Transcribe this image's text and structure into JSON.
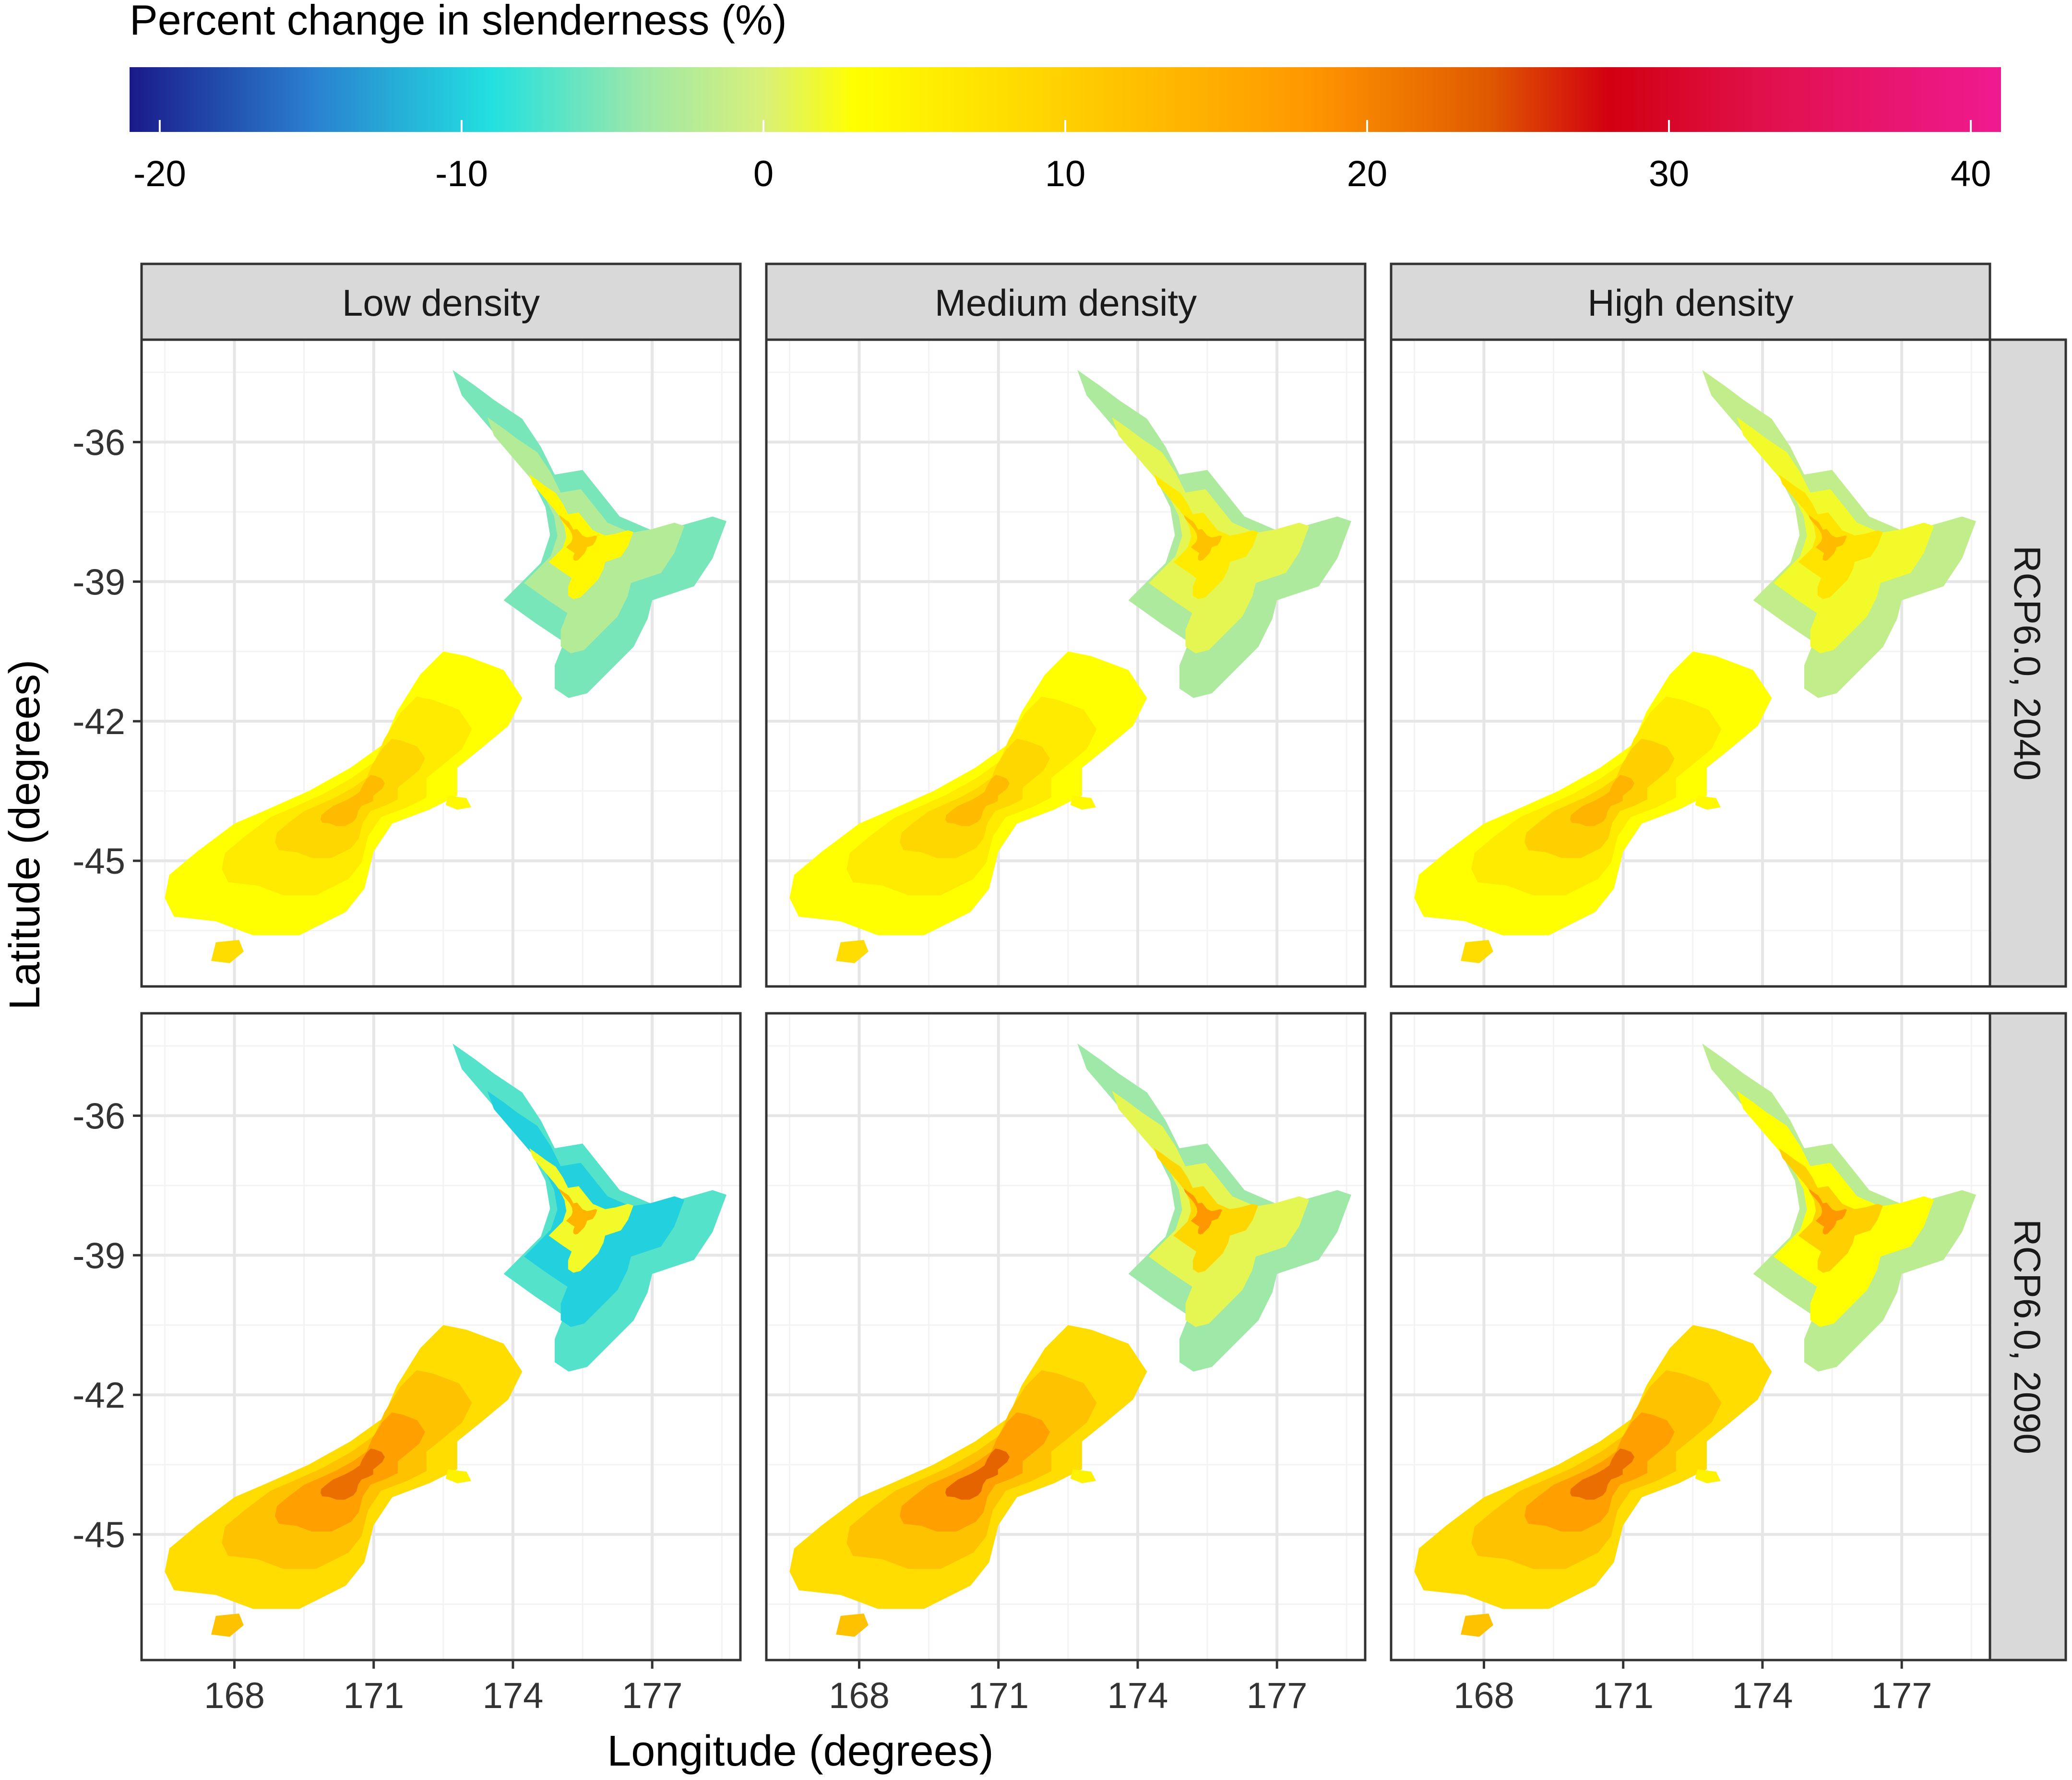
{
  "legend": {
    "title": "Percent change in slenderness (%)",
    "min": -21,
    "max": 41,
    "ticks": [
      {
        "value": -20,
        "label": "-20"
      },
      {
        "value": -10,
        "label": "-10"
      },
      {
        "value": 0,
        "label": "0"
      },
      {
        "value": 10,
        "label": "10"
      },
      {
        "value": 20,
        "label": "20"
      },
      {
        "value": 30,
        "label": "30"
      },
      {
        "value": 40,
        "label": "40"
      }
    ],
    "color_stops": [
      {
        "value": -21,
        "color": "#1a1a8a"
      },
      {
        "value": -15,
        "color": "#2a7fd0"
      },
      {
        "value": -9,
        "color": "#22e0e0"
      },
      {
        "value": -4,
        "color": "#9ee8a8"
      },
      {
        "value": 0,
        "color": "#d8f07a"
      },
      {
        "value": 3,
        "color": "#ffff00"
      },
      {
        "value": 10,
        "color": "#ffd000"
      },
      {
        "value": 18,
        "color": "#ff9800"
      },
      {
        "value": 24,
        "color": "#e05a00"
      },
      {
        "value": 28,
        "color": "#d20010"
      },
      {
        "value": 33,
        "color": "#e0104a"
      },
      {
        "value": 41,
        "color": "#f01a90"
      }
    ]
  },
  "axes": {
    "xlabel": "Longitude (degrees)",
    "ylabel": "Latitude (degrees)",
    "xlim": [
      166.0,
      178.9
    ],
    "ylim": [
      -47.7,
      -33.8
    ],
    "xticks": [
      {
        "value": 168,
        "label": "168"
      },
      {
        "value": 171,
        "label": "171"
      },
      {
        "value": 174,
        "label": "174"
      },
      {
        "value": 177,
        "label": "177"
      }
    ],
    "yticks": [
      {
        "value": -36,
        "label": "-36"
      },
      {
        "value": -39,
        "label": "-39"
      },
      {
        "value": -42,
        "label": "-42"
      },
      {
        "value": -45,
        "label": "-45"
      }
    ],
    "grid": true
  },
  "facets": {
    "columns": [
      "Low density",
      "Medium density",
      "High density"
    ],
    "rows": [
      "RCP6.0, 2040",
      "RCP6.0, 2090"
    ]
  },
  "colors": {
    "strip_fill": "#d9d9d9",
    "panel_border": "#333333",
    "grid_major": "#e6e6e6",
    "grid_minor": "#f3f3f3",
    "text": "#333333",
    "title_text": "#000000"
  },
  "geography": {
    "north_island": [
      [
        172.7,
        -34.45
      ],
      [
        173.2,
        -34.8
      ],
      [
        173.6,
        -35.1
      ],
      [
        174.2,
        -35.5
      ],
      [
        174.6,
        -36.1
      ],
      [
        174.9,
        -36.7
      ],
      [
        175.5,
        -36.6
      ],
      [
        175.9,
        -37.1
      ],
      [
        176.3,
        -37.6
      ],
      [
        177.0,
        -37.9
      ],
      [
        177.6,
        -37.8
      ],
      [
        178.3,
        -37.6
      ],
      [
        178.6,
        -37.7
      ],
      [
        178.3,
        -38.5
      ],
      [
        177.9,
        -39.1
      ],
      [
        177.0,
        -39.4
      ],
      [
        176.9,
        -39.8
      ],
      [
        176.6,
        -40.4
      ],
      [
        176.1,
        -40.9
      ],
      [
        175.6,
        -41.4
      ],
      [
        175.2,
        -41.5
      ],
      [
        174.9,
        -41.3
      ],
      [
        174.9,
        -40.8
      ],
      [
        175.1,
        -40.3
      ],
      [
        174.5,
        -39.9
      ],
      [
        173.8,
        -39.4
      ],
      [
        174.2,
        -39.0
      ],
      [
        174.6,
        -38.6
      ],
      [
        174.8,
        -38.0
      ],
      [
        174.7,
        -37.4
      ],
      [
        174.4,
        -36.8
      ],
      [
        174.1,
        -36.4
      ],
      [
        173.5,
        -35.7
      ],
      [
        172.9,
        -35.0
      ]
    ],
    "south_island": [
      [
        172.5,
        -40.5
      ],
      [
        173.0,
        -40.6
      ],
      [
        173.8,
        -40.9
      ],
      [
        174.2,
        -41.5
      ],
      [
        173.9,
        -42.1
      ],
      [
        173.3,
        -42.6
      ],
      [
        172.8,
        -43.0
      ],
      [
        172.8,
        -43.6
      ],
      [
        172.2,
        -43.9
      ],
      [
        171.4,
        -44.2
      ],
      [
        171.0,
        -44.8
      ],
      [
        170.8,
        -45.6
      ],
      [
        170.4,
        -46.1
      ],
      [
        169.4,
        -46.6
      ],
      [
        168.4,
        -46.6
      ],
      [
        167.6,
        -46.3
      ],
      [
        166.7,
        -46.2
      ],
      [
        166.5,
        -45.8
      ],
      [
        166.6,
        -45.3
      ],
      [
        167.2,
        -44.8
      ],
      [
        168.0,
        -44.2
      ],
      [
        168.7,
        -43.9
      ],
      [
        169.6,
        -43.5
      ],
      [
        170.5,
        -43.0
      ],
      [
        171.2,
        -42.5
      ],
      [
        171.5,
        -41.8
      ],
      [
        172.0,
        -41.0
      ]
    ],
    "stewart_island": [
      [
        167.6,
        -46.75
      ],
      [
        168.1,
        -46.7
      ],
      [
        168.2,
        -46.95
      ],
      [
        167.9,
        -47.2
      ],
      [
        167.5,
        -47.15
      ]
    ],
    "banks_peninsula": [
      [
        172.6,
        -43.6
      ],
      [
        173.0,
        -43.65
      ],
      [
        173.1,
        -43.85
      ],
      [
        172.8,
        -43.9
      ],
      [
        172.55,
        -43.8
      ]
    ]
  },
  "panels": [
    {
      "row": "RCP6.0, 2040",
      "col": "Low density",
      "north_island_bands": [
        {
          "value": -5.5,
          "scale": 1.0
        },
        {
          "value": -2.5,
          "scale": 0.72
        },
        {
          "value": 4,
          "scale": 0.38
        },
        {
          "value": 11,
          "scale": 0.14
        }
      ],
      "south_island_bands": [
        {
          "value": 3,
          "scale": 1.0
        },
        {
          "value": 6,
          "scale": 0.7
        },
        {
          "value": 9,
          "scale": 0.42
        },
        {
          "value": 13,
          "scale": 0.18
        }
      ],
      "stewart_value": 8,
      "banks_value": 4
    },
    {
      "row": "RCP6.0, 2040",
      "col": "Medium density",
      "north_island_bands": [
        {
          "value": -3,
          "scale": 1.0
        },
        {
          "value": 1,
          "scale": 0.72
        },
        {
          "value": 6,
          "scale": 0.38
        },
        {
          "value": 12,
          "scale": 0.14
        }
      ],
      "south_island_bands": [
        {
          "value": 3,
          "scale": 1.0
        },
        {
          "value": 6,
          "scale": 0.7
        },
        {
          "value": 9,
          "scale": 0.42
        },
        {
          "value": 13,
          "scale": 0.18
        }
      ],
      "stewart_value": 8,
      "banks_value": 4
    },
    {
      "row": "RCP6.0, 2040",
      "col": "High density",
      "north_island_bands": [
        {
          "value": -1.5,
          "scale": 1.0
        },
        {
          "value": 2,
          "scale": 0.72
        },
        {
          "value": 7,
          "scale": 0.38
        },
        {
          "value": 13,
          "scale": 0.14
        }
      ],
      "south_island_bands": [
        {
          "value": 3,
          "scale": 1.0
        },
        {
          "value": 6,
          "scale": 0.7
        },
        {
          "value": 10,
          "scale": 0.42
        },
        {
          "value": 14,
          "scale": 0.18
        }
      ],
      "stewart_value": 8,
      "banks_value": 4
    },
    {
      "row": "RCP6.0, 2090",
      "col": "Low density",
      "north_island_bands": [
        {
          "value": -7,
          "scale": 1.0
        },
        {
          "value": -10,
          "scale": 0.72
        },
        {
          "value": 2,
          "scale": 0.38
        },
        {
          "value": 14,
          "scale": 0.14
        }
      ],
      "south_island_bands": [
        {
          "value": 8,
          "scale": 1.0
        },
        {
          "value": 12,
          "scale": 0.7
        },
        {
          "value": 17,
          "scale": 0.42
        },
        {
          "value": 22,
          "scale": 0.18
        }
      ],
      "stewart_value": 12,
      "banks_value": 5
    },
    {
      "row": "RCP6.0, 2090",
      "col": "Medium density",
      "north_island_bands": [
        {
          "value": -4,
          "scale": 1.0
        },
        {
          "value": 1,
          "scale": 0.72
        },
        {
          "value": 9,
          "scale": 0.38
        },
        {
          "value": 18,
          "scale": 0.14
        }
      ],
      "south_island_bands": [
        {
          "value": 8,
          "scale": 1.0
        },
        {
          "value": 12,
          "scale": 0.7
        },
        {
          "value": 17,
          "scale": 0.42
        },
        {
          "value": 23,
          "scale": 0.18
        }
      ],
      "stewart_value": 12,
      "banks_value": 5
    },
    {
      "row": "RCP6.0, 2090",
      "col": "High density",
      "north_island_bands": [
        {
          "value": -2,
          "scale": 1.0
        },
        {
          "value": 3,
          "scale": 0.72
        },
        {
          "value": 10,
          "scale": 0.38
        },
        {
          "value": 18,
          "scale": 0.14
        }
      ],
      "south_island_bands": [
        {
          "value": 8,
          "scale": 1.0
        },
        {
          "value": 12,
          "scale": 0.7
        },
        {
          "value": 17,
          "scale": 0.42
        },
        {
          "value": 22,
          "scale": 0.18
        }
      ],
      "stewart_value": 12,
      "banks_value": 5
    }
  ]
}
